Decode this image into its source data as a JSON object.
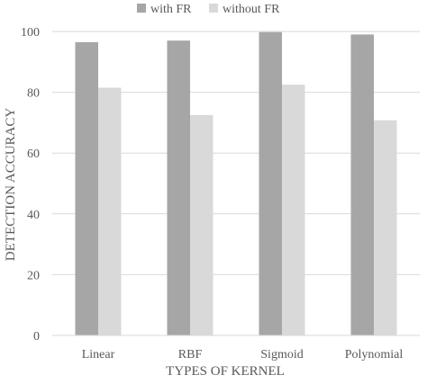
{
  "chart_data": {
    "type": "bar",
    "categories": [
      "Linear",
      "RBF",
      "Sigmoid",
      "Polynomial"
    ],
    "series": [
      {
        "name": "with FR",
        "values": [
          96.5,
          97.0,
          99.8,
          99.0
        ],
        "color": "#a6a6a6"
      },
      {
        "name": "without FR",
        "values": [
          81.5,
          72.5,
          82.5,
          70.8
        ],
        "color": "#d9d9d9"
      }
    ],
    "title": "",
    "xlabel": "TYPES OF KERNEL",
    "ylabel": "DETECTION ACCURACY",
    "ylim": [
      0,
      100
    ],
    "yticks": [
      0,
      20,
      40,
      60,
      80,
      100
    ],
    "grid": true,
    "grid_color": "#d9d9d9",
    "legend": "top"
  }
}
